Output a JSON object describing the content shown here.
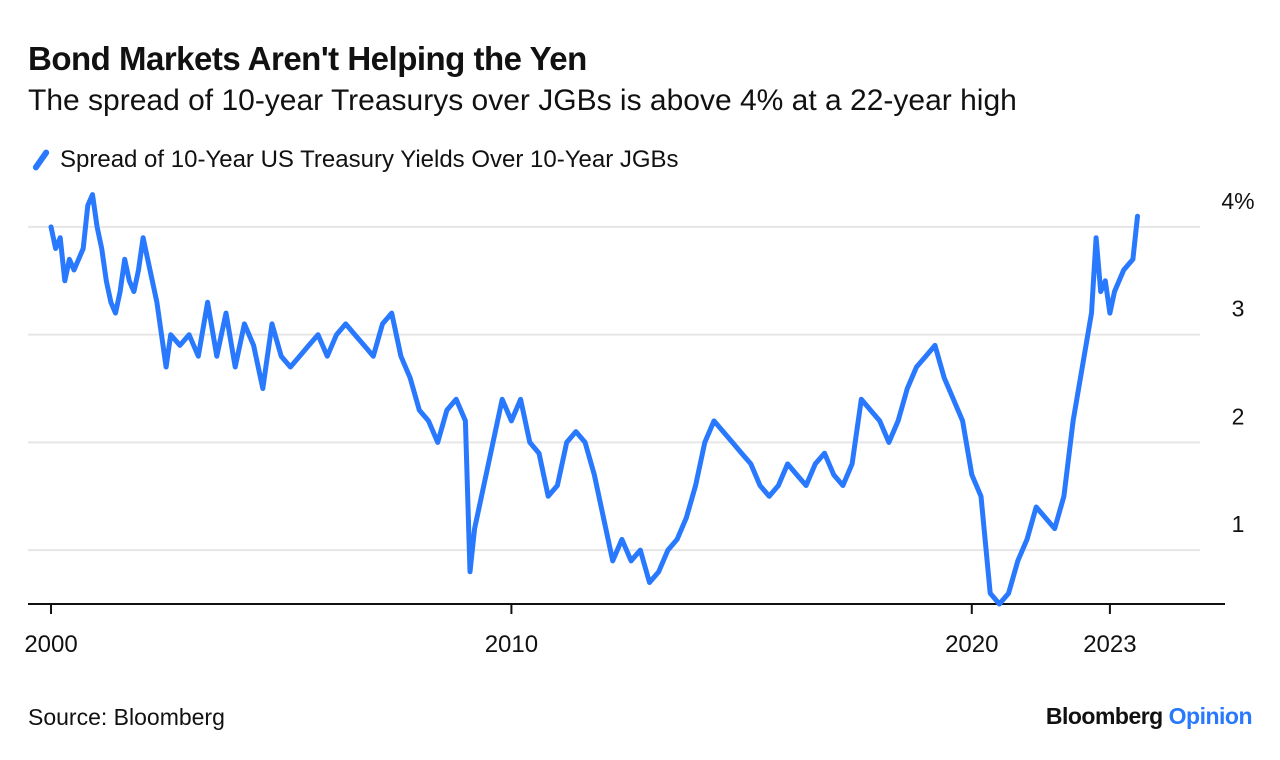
{
  "chart_data": {
    "type": "line",
    "title": "Bond Markets Aren't Helping the Yen",
    "subtitle": "The spread of 10-year Treasurys over JGBs is above 4% at a 22-year high",
    "series": [
      {
        "name": "Spread of 10-Year US Treasury Yields Over 10-Year JGBs",
        "color": "#2979ff",
        "points": [
          [
            2000.0,
            4.0
          ],
          [
            2000.1,
            3.8
          ],
          [
            2000.2,
            3.9
          ],
          [
            2000.3,
            3.5
          ],
          [
            2000.4,
            3.7
          ],
          [
            2000.5,
            3.6
          ],
          [
            2000.6,
            3.7
          ],
          [
            2000.7,
            3.8
          ],
          [
            2000.8,
            4.2
          ],
          [
            2000.9,
            4.3
          ],
          [
            2001.0,
            4.0
          ],
          [
            2001.1,
            3.8
          ],
          [
            2001.2,
            3.5
          ],
          [
            2001.3,
            3.3
          ],
          [
            2001.4,
            3.2
          ],
          [
            2001.5,
            3.4
          ],
          [
            2001.6,
            3.7
          ],
          [
            2001.7,
            3.5
          ],
          [
            2001.8,
            3.4
          ],
          [
            2001.9,
            3.6
          ],
          [
            2002.0,
            3.9
          ],
          [
            2002.1,
            3.7
          ],
          [
            2002.2,
            3.5
          ],
          [
            2002.3,
            3.3
          ],
          [
            2002.4,
            3.0
          ],
          [
            2002.5,
            2.7
          ],
          [
            2002.6,
            3.0
          ],
          [
            2002.8,
            2.9
          ],
          [
            2003.0,
            3.0
          ],
          [
            2003.2,
            2.8
          ],
          [
            2003.4,
            3.3
          ],
          [
            2003.6,
            2.8
          ],
          [
            2003.8,
            3.2
          ],
          [
            2004.0,
            2.7
          ],
          [
            2004.2,
            3.1
          ],
          [
            2004.4,
            2.9
          ],
          [
            2004.6,
            2.5
          ],
          [
            2004.8,
            3.1
          ],
          [
            2005.0,
            2.8
          ],
          [
            2005.2,
            2.7
          ],
          [
            2005.4,
            2.8
          ],
          [
            2005.6,
            2.9
          ],
          [
            2005.8,
            3.0
          ],
          [
            2006.0,
            2.8
          ],
          [
            2006.2,
            3.0
          ],
          [
            2006.4,
            3.1
          ],
          [
            2006.6,
            3.0
          ],
          [
            2006.8,
            2.9
          ],
          [
            2007.0,
            2.8
          ],
          [
            2007.2,
            3.1
          ],
          [
            2007.4,
            3.2
          ],
          [
            2007.6,
            2.8
          ],
          [
            2007.8,
            2.6
          ],
          [
            2008.0,
            2.3
          ],
          [
            2008.2,
            2.2
          ],
          [
            2008.4,
            2.0
          ],
          [
            2008.6,
            2.3
          ],
          [
            2008.8,
            2.4
          ],
          [
            2009.0,
            2.2
          ],
          [
            2009.1,
            0.8
          ],
          [
            2009.2,
            1.2
          ],
          [
            2009.4,
            1.6
          ],
          [
            2009.6,
            2.0
          ],
          [
            2009.8,
            2.4
          ],
          [
            2010.0,
            2.2
          ],
          [
            2010.2,
            2.4
          ],
          [
            2010.4,
            2.0
          ],
          [
            2010.6,
            1.9
          ],
          [
            2010.8,
            1.5
          ],
          [
            2011.0,
            1.6
          ],
          [
            2011.2,
            2.0
          ],
          [
            2011.4,
            2.1
          ],
          [
            2011.6,
            2.0
          ],
          [
            2011.8,
            1.7
          ],
          [
            2012.0,
            1.3
          ],
          [
            2012.2,
            0.9
          ],
          [
            2012.4,
            1.1
          ],
          [
            2012.6,
            0.9
          ],
          [
            2012.8,
            1.0
          ],
          [
            2013.0,
            0.7
          ],
          [
            2013.2,
            0.8
          ],
          [
            2013.4,
            1.0
          ],
          [
            2013.6,
            1.1
          ],
          [
            2013.8,
            1.3
          ],
          [
            2014.0,
            1.6
          ],
          [
            2014.2,
            2.0
          ],
          [
            2014.4,
            2.2
          ],
          [
            2014.6,
            2.1
          ],
          [
            2014.8,
            2.0
          ],
          [
            2015.0,
            1.9
          ],
          [
            2015.2,
            1.8
          ],
          [
            2015.4,
            1.6
          ],
          [
            2015.6,
            1.5
          ],
          [
            2015.8,
            1.6
          ],
          [
            2016.0,
            1.8
          ],
          [
            2016.2,
            1.7
          ],
          [
            2016.4,
            1.6
          ],
          [
            2016.6,
            1.8
          ],
          [
            2016.8,
            1.9
          ],
          [
            2017.0,
            1.7
          ],
          [
            2017.2,
            1.6
          ],
          [
            2017.4,
            1.8
          ],
          [
            2017.6,
            2.4
          ],
          [
            2017.8,
            2.3
          ],
          [
            2018.0,
            2.2
          ],
          [
            2018.2,
            2.0
          ],
          [
            2018.4,
            2.2
          ],
          [
            2018.6,
            2.5
          ],
          [
            2018.8,
            2.7
          ],
          [
            2019.0,
            2.8
          ],
          [
            2019.2,
            2.9
          ],
          [
            2019.4,
            2.6
          ],
          [
            2019.6,
            2.4
          ],
          [
            2019.8,
            2.2
          ],
          [
            2020.0,
            1.7
          ],
          [
            2020.2,
            1.5
          ],
          [
            2020.4,
            0.6
          ],
          [
            2020.6,
            0.5
          ],
          [
            2020.8,
            0.6
          ],
          [
            2021.0,
            0.9
          ],
          [
            2021.2,
            1.1
          ],
          [
            2021.4,
            1.4
          ],
          [
            2021.6,
            1.3
          ],
          [
            2021.8,
            1.2
          ],
          [
            2022.0,
            1.5
          ],
          [
            2022.2,
            2.2
          ],
          [
            2022.4,
            2.7
          ],
          [
            2022.6,
            3.2
          ],
          [
            2022.7,
            3.9
          ],
          [
            2022.8,
            3.4
          ],
          [
            2022.9,
            3.5
          ],
          [
            2023.0,
            3.2
          ],
          [
            2023.1,
            3.4
          ],
          [
            2023.3,
            3.6
          ],
          [
            2023.5,
            3.7
          ],
          [
            2023.6,
            4.1
          ]
        ]
      }
    ],
    "x_ticks": [
      {
        "value": 2000,
        "label": "2000"
      },
      {
        "value": 2010,
        "label": "2010"
      },
      {
        "value": 2020,
        "label": "2020"
      },
      {
        "value": 2023,
        "label": "2023"
      }
    ],
    "y_ticks": [
      {
        "value": 1,
        "label": "1"
      },
      {
        "value": 2,
        "label": "2"
      },
      {
        "value": 3,
        "label": "3"
      },
      {
        "value": 4,
        "label": "4%"
      }
    ],
    "xlim": [
      1999.5,
      2025.5
    ],
    "ylim": [
      0.5,
      4.25
    ],
    "grid": true,
    "y_axis_side": "right",
    "legend_position": "top-left",
    "source": "Source: Bloomberg",
    "brand": {
      "name": "Bloomberg",
      "suffix": "Opinion"
    }
  }
}
